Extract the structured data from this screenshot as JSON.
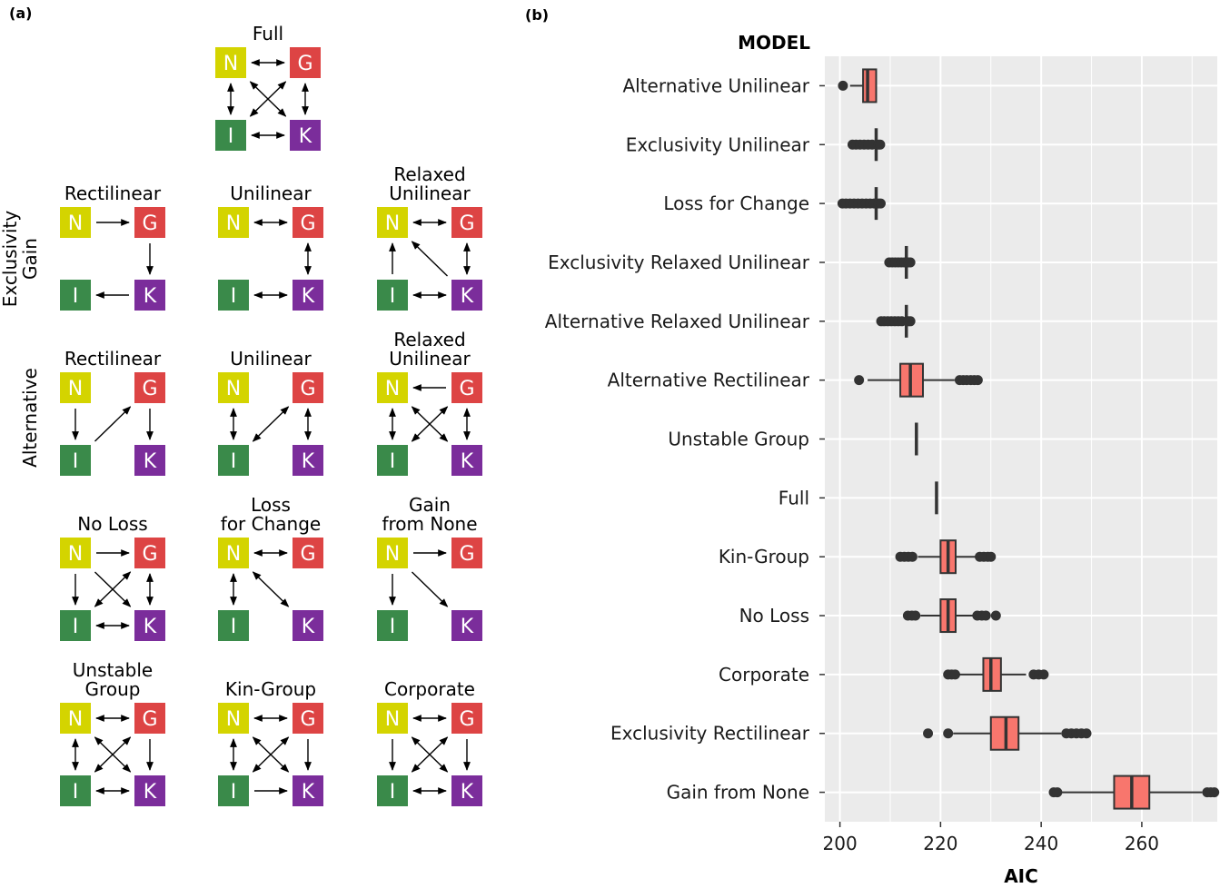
{
  "panel_labels": {
    "a": "(a)",
    "b": "(b)"
  },
  "node_colors": {
    "N": "#d4d400",
    "G": "#dd4444",
    "I": "#3a8a4a",
    "K": "#7b2d9b"
  },
  "panel_a": {
    "row_labels": [
      {
        "lines": [
          "Exclusivity",
          "Gain"
        ]
      },
      {
        "lines": [
          "Alternative"
        ]
      }
    ],
    "diagrams": [
      {
        "title": [
          "Full"
        ],
        "arrows": [
          [
            "N",
            "G",
            "both"
          ],
          [
            "N",
            "I",
            "both"
          ],
          [
            "G",
            "K",
            "both"
          ],
          [
            "I",
            "K",
            "both"
          ],
          [
            "N",
            "K",
            "both"
          ],
          [
            "G",
            "I",
            "both"
          ]
        ]
      },
      {
        "title": [
          "Rectilinear"
        ],
        "arrows": [
          [
            "N",
            "G",
            "fwd"
          ],
          [
            "G",
            "K",
            "fwd"
          ],
          [
            "K",
            "I",
            "fwd"
          ]
        ]
      },
      {
        "title": [
          "Unilinear"
        ],
        "arrows": [
          [
            "N",
            "G",
            "both"
          ],
          [
            "G",
            "K",
            "both"
          ],
          [
            "I",
            "K",
            "both"
          ]
        ]
      },
      {
        "title": [
          "Relaxed",
          "Unilinear"
        ],
        "arrows": [
          [
            "N",
            "G",
            "both"
          ],
          [
            "G",
            "K",
            "both"
          ],
          [
            "K",
            "I",
            "both"
          ],
          [
            "I",
            "N",
            "fwd"
          ],
          [
            "K",
            "N",
            "fwd"
          ]
        ]
      },
      {
        "title": [
          "Rectilinear"
        ],
        "arrows": [
          [
            "N",
            "I",
            "fwd"
          ],
          [
            "I",
            "G",
            "fwd"
          ],
          [
            "G",
            "K",
            "fwd"
          ]
        ]
      },
      {
        "title": [
          "Unilinear"
        ],
        "arrows": [
          [
            "N",
            "I",
            "both"
          ],
          [
            "I",
            "G",
            "both"
          ],
          [
            "G",
            "K",
            "both"
          ]
        ]
      },
      {
        "title": [
          "Relaxed",
          "Unilinear"
        ],
        "arrows": [
          [
            "G",
            "N",
            "fwd"
          ],
          [
            "N",
            "I",
            "both"
          ],
          [
            "G",
            "K",
            "both"
          ],
          [
            "N",
            "K",
            "both"
          ],
          [
            "G",
            "I",
            "both"
          ]
        ]
      },
      {
        "title": [
          "No Loss"
        ],
        "arrows": [
          [
            "N",
            "G",
            "fwd"
          ],
          [
            "N",
            "I",
            "fwd"
          ],
          [
            "G",
            "K",
            "both"
          ],
          [
            "I",
            "K",
            "both"
          ],
          [
            "N",
            "K",
            "fwd"
          ],
          [
            "G",
            "I",
            "both"
          ]
        ]
      },
      {
        "title": [
          "Loss",
          "for Change"
        ],
        "arrows": [
          [
            "N",
            "G",
            "both"
          ],
          [
            "N",
            "I",
            "both"
          ],
          [
            "N",
            "K",
            "both"
          ]
        ]
      },
      {
        "title": [
          "Gain",
          "from None"
        ],
        "arrows": [
          [
            "N",
            "G",
            "fwd"
          ],
          [
            "N",
            "I",
            "fwd"
          ],
          [
            "N",
            "K",
            "fwd"
          ]
        ]
      },
      {
        "title": [
          "Unstable",
          "Group"
        ],
        "arrows": [
          [
            "N",
            "G",
            "both"
          ],
          [
            "N",
            "I",
            "both"
          ],
          [
            "G",
            "K",
            "fwd"
          ],
          [
            "I",
            "K",
            "both"
          ],
          [
            "N",
            "K",
            "both"
          ],
          [
            "G",
            "I",
            "both"
          ]
        ]
      },
      {
        "title": [
          "Kin-Group"
        ],
        "arrows": [
          [
            "N",
            "G",
            "both"
          ],
          [
            "N",
            "I",
            "both"
          ],
          [
            "G",
            "K",
            "fwd"
          ],
          [
            "I",
            "K",
            "fwd"
          ],
          [
            "N",
            "K",
            "both"
          ],
          [
            "G",
            "I",
            "both"
          ]
        ]
      },
      {
        "title": [
          "Corporate"
        ],
        "arrows": [
          [
            "N",
            "G",
            "both"
          ],
          [
            "N",
            "I",
            "fwd"
          ],
          [
            "G",
            "K",
            "fwd"
          ],
          [
            "I",
            "K",
            "both"
          ],
          [
            "N",
            "K",
            "both"
          ],
          [
            "G",
            "I",
            "both"
          ]
        ]
      }
    ]
  },
  "chart_data": {
    "type": "boxplot",
    "title": "",
    "category_axis_title": "MODEL",
    "xlabel": "AIC",
    "xlim": [
      197,
      275
    ],
    "xticks": [
      200,
      220,
      240,
      260
    ],
    "grid": true,
    "box_color": "#f8766d",
    "panel_background": "#ebebeb",
    "categories": [
      "Alternative Unilinear",
      "Exclusivity Unilinear",
      "Loss for Change",
      "Exclusivity Relaxed Unilinear",
      "Alternative Relaxed Unilinear",
      "Alternative Rectilinear",
      "Unstable Group",
      "Full",
      "Kin-Group",
      "No Loss",
      "Corporate",
      "Exclusivity Rectilinear",
      "Gain from None"
    ],
    "boxes": [
      {
        "q1": 204.6,
        "median": 205.5,
        "q3": 207.2,
        "whisker_low": 202.0,
        "whisker_high": 207.2,
        "outliers": [
          200.6
        ]
      },
      {
        "q1": 207.2,
        "median": 207.2,
        "q3": 207.2,
        "whisker_low": 207.2,
        "whisker_high": 207.2,
        "outliers": [
          202.5,
          203.2,
          204.0,
          204.8,
          205.6,
          206.4,
          207.7,
          208.0
        ]
      },
      {
        "q1": 207.2,
        "median": 207.2,
        "q3": 207.2,
        "whisker_low": 207.2,
        "whisker_high": 207.2,
        "outliers": [
          200.5,
          201.2,
          202.0,
          202.8,
          203.6,
          204.4,
          205.2,
          206.0,
          206.8,
          207.7,
          208.1
        ]
      },
      {
        "q1": 213.2,
        "median": 213.2,
        "q3": 213.2,
        "whisker_low": 213.2,
        "whisker_high": 213.2,
        "outliers": [
          209.8,
          210.4,
          211.0,
          211.6,
          212.2,
          212.8,
          213.6,
          214.0
        ]
      },
      {
        "q1": 213.2,
        "median": 213.2,
        "q3": 213.2,
        "whisker_low": 213.2,
        "whisker_high": 213.2,
        "outliers": [
          208.2,
          208.8,
          209.5,
          210.2,
          210.9,
          211.6,
          212.3,
          213.6,
          214.0
        ]
      },
      {
        "q1": 212.0,
        "median": 214.0,
        "q3": 216.5,
        "whisker_low": 205.5,
        "whisker_high": 222.8,
        "outliers": [
          203.8,
          223.8,
          224.5,
          225.2,
          226.0,
          226.7,
          227.4
        ]
      },
      {
        "q1": 215.2,
        "median": 215.2,
        "q3": 215.2,
        "whisker_low": 215.2,
        "whisker_high": 215.2,
        "outliers": []
      },
      {
        "q1": 219.2,
        "median": 219.2,
        "q3": 219.2,
        "whisker_low": 219.2,
        "whisker_high": 219.2,
        "outliers": []
      },
      {
        "q1": 220.0,
        "median": 221.5,
        "q3": 223.0,
        "whisker_low": 215.5,
        "whisker_high": 227.0,
        "outliers": [
          212.0,
          212.8,
          213.6,
          214.4,
          227.8,
          228.6,
          229.4,
          230.0
        ]
      },
      {
        "q1": 220.0,
        "median": 221.5,
        "q3": 223.0,
        "whisker_low": 216.0,
        "whisker_high": 226.5,
        "outliers": [
          213.5,
          214.3,
          215.0,
          227.3,
          228.2,
          229.0,
          231.0
        ]
      },
      {
        "q1": 228.5,
        "median": 230.0,
        "q3": 232.0,
        "whisker_low": 223.5,
        "whisker_high": 237.0,
        "outliers": [
          221.5,
          222.2,
          222.9,
          238.5,
          239.5,
          240.5
        ]
      },
      {
        "q1": 230.0,
        "median": 233.0,
        "q3": 235.5,
        "whisker_low": 222.5,
        "whisker_high": 244.0,
        "outliers": [
          217.5,
          221.5,
          245.0,
          246.0,
          247.0,
          248.0,
          249.0
        ]
      },
      {
        "q1": 254.5,
        "median": 258.0,
        "q3": 261.5,
        "whisker_low": 244.0,
        "whisker_high": 272.0,
        "outliers": [
          242.5,
          243.2,
          273.0,
          273.7,
          274.4
        ]
      }
    ]
  }
}
